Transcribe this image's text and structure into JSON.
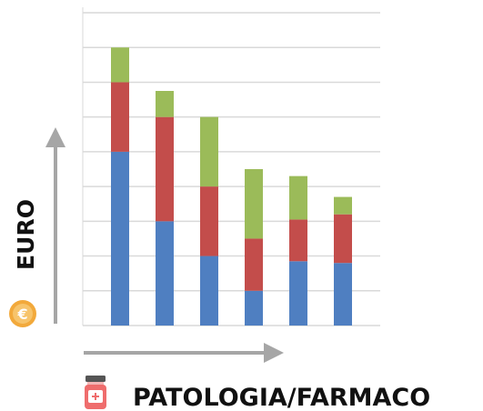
{
  "chart_data": {
    "type": "bar",
    "stacked": true,
    "categories": [
      "",
      "",
      "",
      "",
      "",
      ""
    ],
    "series": [
      {
        "color": "#4f7fc1",
        "values": [
          5.0,
          3.0,
          2.0,
          1.0,
          1.85,
          1.8
        ]
      },
      {
        "color": "#c34d4b",
        "values": [
          2.0,
          3.0,
          2.0,
          1.5,
          1.2,
          1.4
        ]
      },
      {
        "color": "#9bbb59",
        "values": [
          1.0,
          0.75,
          2.0,
          2.0,
          1.25,
          0.5
        ]
      }
    ],
    "ylim": [
      0,
      9
    ],
    "grid": true,
    "xlabel": "PATOLOGIA/FARMACO",
    "ylabel": "EURO"
  },
  "icons": {
    "y_axis_icon": "euro-coin-icon",
    "x_axis_icon": "medicine-bottle-icon",
    "coin_color": "#f2a93b",
    "bottle_color": "#ef6d6d"
  },
  "colors": {
    "arrow": "#a6a6a6",
    "grid": "#d9d9d9"
  }
}
